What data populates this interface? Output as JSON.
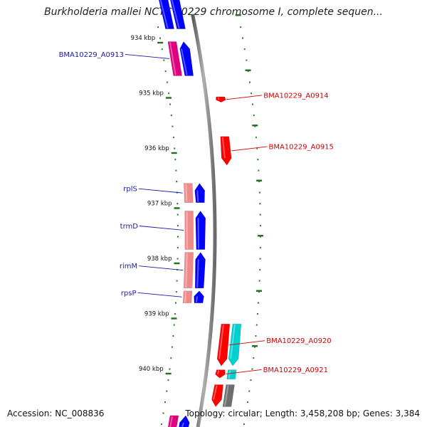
{
  "title": "Burkholderia mallei NCTC 10229 chromosome I, complete sequen...",
  "footer": {
    "accession": "Accession: NC_008836",
    "topology": "Topology: circular; Length: 3,458,208 bp; Genes: 3,384"
  },
  "colors": {
    "backbone": "#8a8a8a",
    "scale_dots": "#2a8a2a",
    "forward_strand_label": "#1a1aa8",
    "reverse_strand_label": "#d40000",
    "red": "#ff0000",
    "blue": "#0000ff",
    "pink": "#f08a8a",
    "magenta": "#e0007f",
    "cyan": "#00d0d0",
    "grey": "#6e6e6e"
  },
  "scale_ticks": [
    {
      "label": "934 kbp",
      "kbp": 934
    },
    {
      "label": "935 kbp",
      "kbp": 935
    },
    {
      "label": "936 kbp",
      "kbp": 936
    },
    {
      "label": "937 kbp",
      "kbp": 937
    },
    {
      "label": "938 kbp",
      "kbp": 938
    },
    {
      "label": "939 kbp",
      "kbp": 939
    },
    {
      "label": "940 kbp",
      "kbp": 940
    }
  ],
  "features": [
    {
      "label": "",
      "strand": "outer",
      "kind": "cds",
      "start_kbp": 932.6,
      "end_kbp": 933.75,
      "arrow": "up",
      "color": "blue"
    },
    {
      "label": "",
      "strand": "inner",
      "kind": "cds",
      "start_kbp": 932.6,
      "end_kbp": 933.75,
      "arrow": "up",
      "color": "blue"
    },
    {
      "label": "BMA10229_A0913",
      "strand": "outer",
      "kind": "cds",
      "start_kbp": 933.98,
      "end_kbp": 934.6,
      "arrow": "up",
      "color": "blue"
    },
    {
      "label": "",
      "strand": "inner",
      "kind": "gene",
      "start_kbp": 933.98,
      "end_kbp": 934.6,
      "arrow": "up",
      "color": "magenta"
    },
    {
      "label": "BMA10229_A0914",
      "strand": "rev_inner",
      "kind": "cds",
      "start_kbp": 934.98,
      "end_kbp": 935.08,
      "arrow": "down",
      "color": "red"
    },
    {
      "label": "BMA10229_A0915",
      "strand": "rev_inner",
      "kind": "cds",
      "start_kbp": 935.7,
      "end_kbp": 936.22,
      "arrow": "down",
      "color": "red"
    },
    {
      "label": "rplS",
      "strand": "outer",
      "kind": "cds",
      "start_kbp": 936.55,
      "end_kbp": 936.9,
      "arrow": "up",
      "color": "blue"
    },
    {
      "label": "",
      "strand": "inner",
      "kind": "gene",
      "start_kbp": 936.55,
      "end_kbp": 936.9,
      "arrow": "up",
      "color": "pink"
    },
    {
      "label": "trmD",
      "strand": "outer",
      "kind": "cds",
      "start_kbp": 937.05,
      "end_kbp": 937.75,
      "arrow": "up",
      "color": "blue"
    },
    {
      "label": "",
      "strand": "inner",
      "kind": "gene",
      "start_kbp": 937.05,
      "end_kbp": 937.75,
      "arrow": "up",
      "color": "pink"
    },
    {
      "label": "rimM",
      "strand": "outer",
      "kind": "cds",
      "start_kbp": 937.8,
      "end_kbp": 938.45,
      "arrow": "up",
      "color": "blue"
    },
    {
      "label": "",
      "strand": "inner",
      "kind": "gene",
      "start_kbp": 937.8,
      "end_kbp": 938.45,
      "arrow": "up",
      "color": "pink"
    },
    {
      "label": "rpsP",
      "strand": "outer",
      "kind": "cds",
      "start_kbp": 938.5,
      "end_kbp": 938.72,
      "arrow": "up",
      "color": "blue"
    },
    {
      "label": "",
      "strand": "inner",
      "kind": "gene",
      "start_kbp": 938.5,
      "end_kbp": 938.72,
      "arrow": "up",
      "color": "pink"
    },
    {
      "label": "BMA10229_A0920",
      "strand": "rev_inner",
      "kind": "cds",
      "start_kbp": 939.1,
      "end_kbp": 939.86,
      "arrow": "down",
      "color": "red"
    },
    {
      "label": "",
      "strand": "rev_outer",
      "kind": "cds",
      "start_kbp": 939.1,
      "end_kbp": 939.86,
      "arrow": "down",
      "color": "cyan"
    },
    {
      "label": "BMA10229_A0921",
      "strand": "rev_inner",
      "kind": "cds",
      "start_kbp": 939.93,
      "end_kbp": 940.08,
      "arrow": "down",
      "color": "red"
    },
    {
      "label": "",
      "strand": "rev_outer",
      "kind": "gene",
      "start_kbp": 939.93,
      "end_kbp": 940.1,
      "arrow": "down",
      "color": "cyan"
    },
    {
      "label": "",
      "strand": "rev_inner",
      "kind": "cds",
      "start_kbp": 940.2,
      "end_kbp": 940.6,
      "arrow": "down",
      "color": "red"
    },
    {
      "label": "",
      "strand": "rev_outer",
      "kind": "gene",
      "start_kbp": 940.2,
      "end_kbp": 940.6,
      "arrow": "down",
      "color": "grey"
    },
    {
      "label": "",
      "strand": "inner",
      "kind": "gene",
      "start_kbp": 940.76,
      "end_kbp": 941.1,
      "arrow": "up",
      "color": "magenta"
    },
    {
      "label": "",
      "strand": "outer",
      "kind": "cds",
      "start_kbp": 940.76,
      "end_kbp": 941.1,
      "arrow": "up",
      "color": "blue"
    }
  ]
}
